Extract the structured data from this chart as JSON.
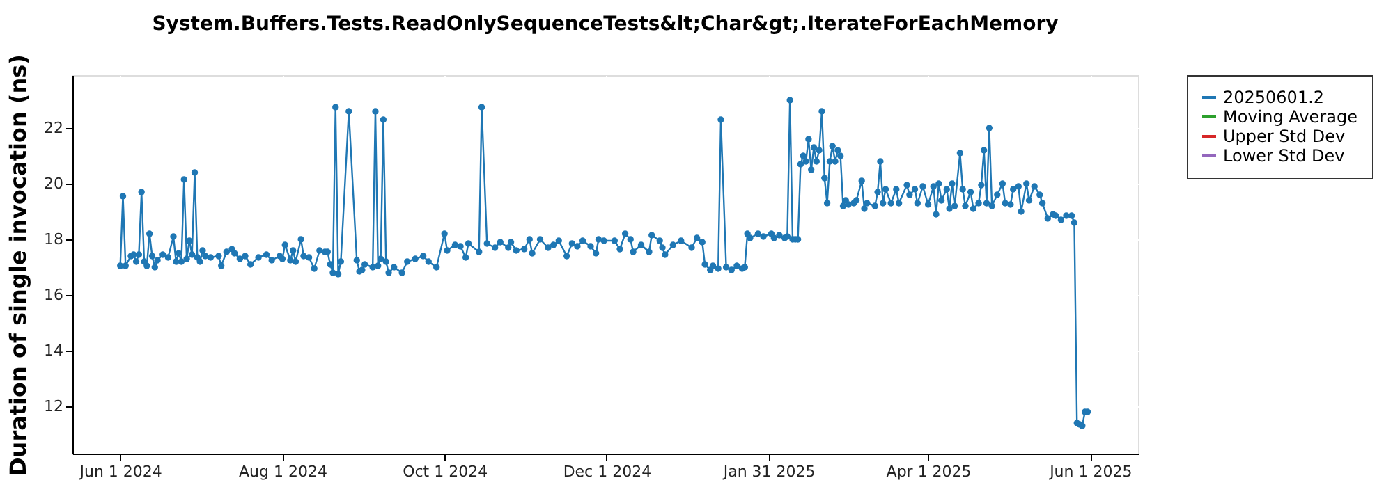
{
  "chart_data": {
    "type": "line",
    "title": "System.Buffers.Tests.ReadOnlySequenceTests&lt;Char&gt;.IterateForEachMemory",
    "ylabel": "Duration of single invocation (ns)",
    "xlim": [
      "2024-05-14",
      "2025-06-19"
    ],
    "xticks": [
      {
        "value": "2024-06-01",
        "label": "Jun 1 2024"
      },
      {
        "value": "2024-08-01",
        "label": "Aug 1 2024"
      },
      {
        "value": "2024-10-01",
        "label": "Oct 1 2024"
      },
      {
        "value": "2024-12-01",
        "label": "Dec 1 2024"
      },
      {
        "value": "2025-01-31",
        "label": "Jan 31 2025"
      },
      {
        "value": "2025-04-01",
        "label": "Apr 1 2025"
      },
      {
        "value": "2025-06-01",
        "label": "Jun 1 2025"
      }
    ],
    "ylim": [
      10.3,
      23.9
    ],
    "yticks": [
      12,
      14,
      16,
      18,
      20,
      22
    ],
    "grid": true,
    "legend": "right",
    "marker": "circle",
    "line_style": "solid",
    "series": [
      {
        "name": "20250601.2",
        "color": "#1f77b4",
        "x": [
          "2024-06-01",
          "2024-06-02",
          "2024-06-03",
          "2024-06-05",
          "2024-06-06",
          "2024-06-07",
          "2024-06-08",
          "2024-06-09",
          "2024-06-10",
          "2024-06-11",
          "2024-06-12",
          "2024-06-13",
          "2024-06-14",
          "2024-06-15",
          "2024-06-17",
          "2024-06-19",
          "2024-06-21",
          "2024-06-22",
          "2024-06-23",
          "2024-06-24",
          "2024-06-25",
          "2024-06-26",
          "2024-06-27",
          "2024-06-28",
          "2024-06-29",
          "2024-06-30",
          "2024-07-01",
          "2024-07-02",
          "2024-07-03",
          "2024-07-05",
          "2024-07-08",
          "2024-07-09",
          "2024-07-11",
          "2024-07-13",
          "2024-07-14",
          "2024-07-16",
          "2024-07-18",
          "2024-07-20",
          "2024-07-23",
          "2024-07-26",
          "2024-07-28",
          "2024-07-31",
          "2024-08-01",
          "2024-08-02",
          "2024-08-04",
          "2024-08-05",
          "2024-08-06",
          "2024-08-08",
          "2024-08-09",
          "2024-08-11",
          "2024-08-13",
          "2024-08-15",
          "2024-08-17",
          "2024-08-18",
          "2024-08-19",
          "2024-08-20",
          "2024-08-21",
          "2024-08-22",
          "2024-08-23",
          "2024-08-26",
          "2024-08-29",
          "2024-08-30",
          "2024-08-31",
          "2024-09-01",
          "2024-09-04",
          "2024-09-05",
          "2024-09-06",
          "2024-09-07",
          "2024-09-08",
          "2024-09-09",
          "2024-09-10",
          "2024-09-12",
          "2024-09-15",
          "2024-09-17",
          "2024-09-20",
          "2024-09-23",
          "2024-09-25",
          "2024-09-28",
          "2024-10-01",
          "2024-10-02",
          "2024-10-05",
          "2024-10-07",
          "2024-10-09",
          "2024-10-10",
          "2024-10-14",
          "2024-10-15",
          "2024-10-17",
          "2024-10-20",
          "2024-10-22",
          "2024-10-25",
          "2024-10-26",
          "2024-10-28",
          "2024-10-31",
          "2024-11-02",
          "2024-11-03",
          "2024-11-06",
          "2024-11-09",
          "2024-11-11",
          "2024-11-13",
          "2024-11-16",
          "2024-11-18",
          "2024-11-20",
          "2024-11-22",
          "2024-11-25",
          "2024-11-27",
          "2024-11-28",
          "2024-11-30",
          "2024-12-04",
          "2024-12-06",
          "2024-12-08",
          "2024-12-10",
          "2024-12-11",
          "2024-12-14",
          "2024-12-17",
          "2024-12-18",
          "2024-12-21",
          "2024-12-22",
          "2024-12-23",
          "2024-12-26",
          "2024-12-29",
          "2025-01-02",
          "2025-01-04",
          "2025-01-06",
          "2025-01-07",
          "2025-01-09",
          "2025-01-10",
          "2025-01-12",
          "2025-01-13",
          "2025-01-15",
          "2025-01-17",
          "2025-01-19",
          "2025-01-21",
          "2025-01-22",
          "2025-01-23",
          "2025-01-24",
          "2025-01-27",
          "2025-01-29",
          "2025-02-01",
          "2025-02-02",
          "2025-02-04",
          "2025-02-06",
          "2025-02-07",
          "2025-02-08",
          "2025-02-09",
          "2025-02-10",
          "2025-02-11",
          "2025-02-12",
          "2025-02-13",
          "2025-02-14",
          "2025-02-15",
          "2025-02-16",
          "2025-02-17",
          "2025-02-18",
          "2025-02-19",
          "2025-02-20",
          "2025-02-21",
          "2025-02-22",
          "2025-02-23",
          "2025-02-24",
          "2025-02-25",
          "2025-02-26",
          "2025-02-27",
          "2025-02-28",
          "2025-03-01",
          "2025-03-02",
          "2025-03-04",
          "2025-03-05",
          "2025-03-07",
          "2025-03-08",
          "2025-03-09",
          "2025-03-12",
          "2025-03-13",
          "2025-03-14",
          "2025-03-15",
          "2025-03-16",
          "2025-03-18",
          "2025-03-20",
          "2025-03-21",
          "2025-03-24",
          "2025-03-25",
          "2025-03-27",
          "2025-03-28",
          "2025-03-30",
          "2025-04-01",
          "2025-04-03",
          "2025-04-04",
          "2025-04-05",
          "2025-04-06",
          "2025-04-08",
          "2025-04-09",
          "2025-04-10",
          "2025-04-11",
          "2025-04-13",
          "2025-04-14",
          "2025-04-15",
          "2025-04-17",
          "2025-04-18",
          "2025-04-20",
          "2025-04-21",
          "2025-04-22",
          "2025-04-23",
          "2025-04-24",
          "2025-04-25",
          "2025-04-27",
          "2025-04-29",
          "2025-04-30",
          "2025-05-02",
          "2025-05-03",
          "2025-05-05",
          "2025-05-06",
          "2025-05-08",
          "2025-05-09",
          "2025-05-11",
          "2025-05-13",
          "2025-05-14",
          "2025-05-16",
          "2025-05-18",
          "2025-05-19",
          "2025-05-21",
          "2025-05-23",
          "2025-05-25",
          "2025-05-26",
          "2025-05-27",
          "2025-05-28",
          "2025-05-29",
          "2025-05-30",
          "2025-05-31"
        ],
        "values": [
          17.05,
          19.55,
          17.05,
          17.4,
          17.45,
          17.2,
          17.45,
          19.7,
          17.2,
          17.05,
          18.2,
          17.4,
          17.0,
          17.25,
          17.45,
          17.35,
          18.1,
          17.2,
          17.5,
          17.2,
          20.15,
          17.3,
          17.95,
          17.45,
          20.4,
          17.35,
          17.2,
          17.6,
          17.4,
          17.35,
          17.4,
          17.05,
          17.55,
          17.65,
          17.5,
          17.3,
          17.4,
          17.1,
          17.35,
          17.45,
          17.25,
          17.4,
          17.3,
          17.8,
          17.25,
          17.6,
          17.2,
          18.0,
          17.4,
          17.35,
          16.95,
          17.6,
          17.55,
          17.55,
          17.1,
          16.8,
          22.75,
          16.75,
          17.2,
          22.6,
          17.25,
          16.85,
          16.9,
          17.1,
          17.0,
          22.6,
          17.05,
          17.3,
          22.3,
          17.2,
          16.8,
          17.0,
          16.8,
          17.2,
          17.3,
          17.4,
          17.2,
          17.0,
          18.2,
          17.6,
          17.8,
          17.75,
          17.35,
          17.85,
          17.55,
          22.75,
          17.85,
          17.7,
          17.9,
          17.7,
          17.9,
          17.6,
          17.65,
          18.0,
          17.5,
          18.0,
          17.7,
          17.8,
          17.95,
          17.4,
          17.85,
          17.75,
          17.95,
          17.75,
          17.5,
          18.0,
          17.95,
          17.95,
          17.65,
          18.2,
          18.0,
          17.55,
          17.8,
          17.55,
          18.15,
          17.95,
          17.7,
          17.45,
          17.8,
          17.95,
          17.7,
          18.05,
          17.9,
          17.1,
          16.9,
          17.05,
          16.95,
          22.3,
          17.0,
          16.9,
          17.05,
          16.95,
          17.0,
          18.2,
          18.05,
          18.2,
          18.1,
          18.2,
          18.05,
          18.15,
          18.05,
          18.1,
          23.0,
          18.0,
          18.0,
          18.0,
          20.7,
          21.0,
          20.8,
          21.6,
          20.5,
          21.3,
          20.8,
          21.2,
          22.6,
          20.2,
          19.3,
          20.8,
          21.35,
          20.8,
          21.2,
          21.0,
          19.2,
          19.4,
          19.25,
          19.3,
          19.4,
          20.1,
          19.1,
          19.3,
          19.2,
          19.7,
          20.8,
          19.3,
          19.8,
          19.3,
          19.8,
          19.3,
          19.95,
          19.6,
          19.8,
          19.3,
          19.9,
          19.25,
          19.9,
          18.9,
          20.0,
          19.4,
          19.8,
          19.1,
          20.0,
          19.2,
          21.1,
          19.8,
          19.2,
          19.7,
          19.1,
          19.3,
          19.95,
          21.2,
          19.3,
          22.0,
          19.2,
          19.6,
          20.0,
          19.3,
          19.25,
          19.8,
          19.9,
          19.0,
          20.0,
          19.4,
          19.9,
          19.6,
          19.3,
          18.75,
          18.9,
          18.85,
          18.7,
          18.85,
          18.85,
          18.6,
          11.4,
          11.35,
          11.3,
          11.8,
          11.8
        ]
      },
      {
        "name": "Moving Average",
        "color": "#2ca02c"
      },
      {
        "name": "Upper Std Dev",
        "color": "#d62728"
      },
      {
        "name": "Lower Std Dev",
        "color": "#9467bd"
      }
    ]
  }
}
